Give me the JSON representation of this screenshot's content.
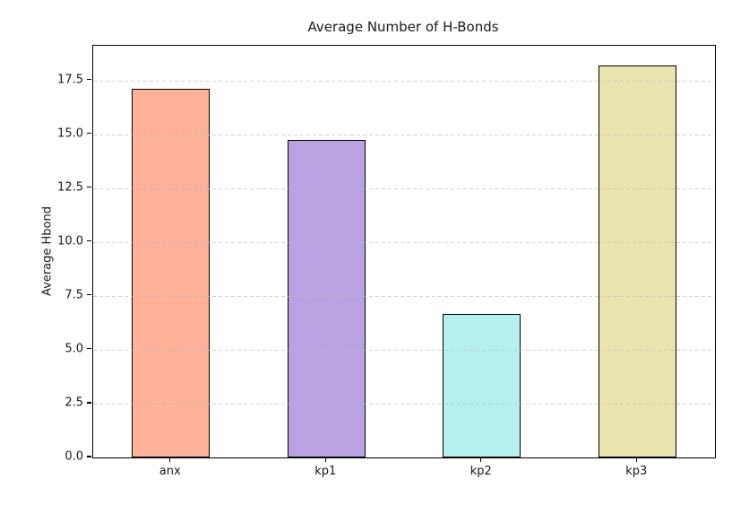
{
  "chart_data": {
    "type": "bar",
    "title": "Average Number of H-Bonds",
    "xlabel": "",
    "ylabel": "Average Hbond",
    "categories": [
      "anx",
      "kp1",
      "kp2",
      "kp3"
    ],
    "values": [
      17.1,
      14.75,
      6.67,
      18.2
    ],
    "bar_colors": [
      "#ffb199",
      "#b9a1e2",
      "#b3f0ee",
      "#eae4af"
    ],
    "bar_edge_color": "#000000",
    "ylim": [
      0,
      19.11
    ],
    "yticks": [
      0.0,
      2.5,
      5.0,
      7.5,
      10.0,
      12.5,
      15.0,
      17.5
    ],
    "ytick_labels": [
      "0.0",
      "2.5",
      "5.0",
      "7.5",
      "10.0",
      "12.5",
      "15.0",
      "17.5"
    ],
    "grid": "horizontal-dashed",
    "grid_color": "#b9b9b9",
    "legend_position": "none"
  }
}
